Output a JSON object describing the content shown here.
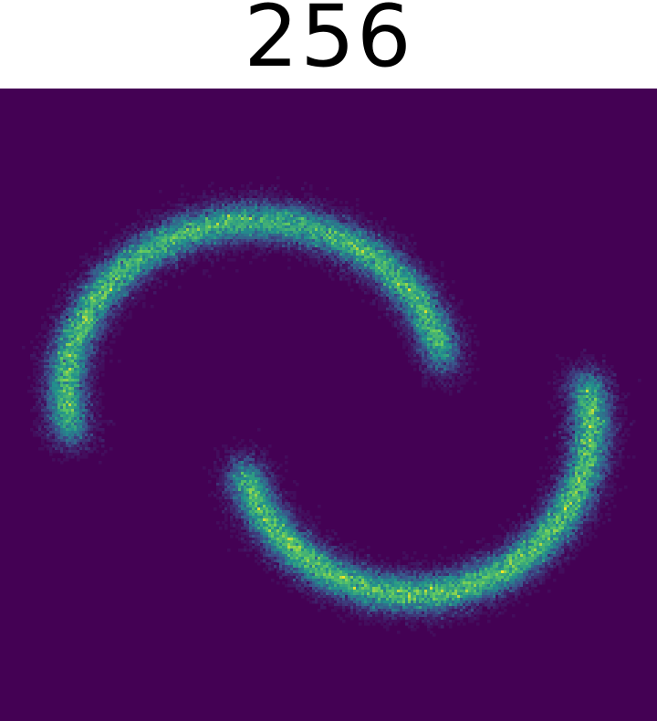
{
  "chart_data": {
    "type": "heatmap",
    "title": "256",
    "xlabel": "",
    "ylabel": "",
    "dataset": "two-moons",
    "bins": [
      240,
      231
    ],
    "xlim": [
      0,
      1
    ],
    "ylim": [
      0,
      1
    ],
    "grid": false,
    "axes_visible": false,
    "colormap": "viridis",
    "background_color": "#440154",
    "colormap_stops": [
      "#440154",
      "#3b528b",
      "#21918c",
      "#5ec962",
      "#fde725"
    ],
    "series": [
      {
        "name": "upper-moon",
        "arc": {
          "center": [
            0.39,
            0.52
          ],
          "radius": [
            0.29,
            0.27
          ],
          "angle_range_deg": [
            10,
            195
          ]
        },
        "peak_density": 1.0
      },
      {
        "name": "lower-moon",
        "arc": {
          "center": [
            0.63,
            0.47
          ],
          "radius": [
            0.27,
            0.27
          ],
          "angle_range_deg": [
            195,
            375
          ]
        },
        "peak_density": 1.0
      }
    ]
  }
}
